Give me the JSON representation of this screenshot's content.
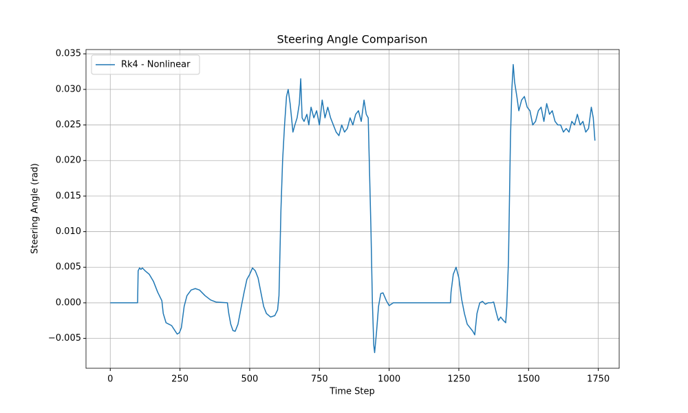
{
  "chart_data": {
    "type": "line",
    "title": "Steering Angle Comparison",
    "x_label": "Time Step",
    "y_label": "Steering Angle (rad)",
    "grid": true,
    "legend": "upper left",
    "xlim": [
      -87,
      1825
    ],
    "ylim": [
      -0.0092,
      0.0356
    ],
    "xticks": [
      0,
      250,
      500,
      750,
      1000,
      1250,
      1500,
      1750
    ],
    "yticks": [
      {
        "value": -0.005,
        "label": "−0.005"
      },
      {
        "value": 0,
        "label": "0.000"
      },
      {
        "value": 0.005,
        "label": "0.005"
      },
      {
        "value": 0.01,
        "label": "0.010"
      },
      {
        "value": 0.015,
        "label": "0.015"
      },
      {
        "value": 0.02,
        "label": "0.020"
      },
      {
        "value": 0.025,
        "label": "0.025"
      },
      {
        "value": 0.03,
        "label": "0.030"
      },
      {
        "value": 0.035,
        "label": "0.035"
      }
    ],
    "x": [
      0,
      98,
      100,
      105,
      110,
      115,
      125,
      140,
      155,
      170,
      185,
      190,
      200,
      210,
      220,
      230,
      240,
      248,
      255,
      265,
      275,
      290,
      305,
      320,
      340,
      360,
      380,
      420,
      425,
      432,
      440,
      448,
      458,
      470,
      480,
      490,
      500,
      510,
      520,
      530,
      540,
      550,
      560,
      575,
      590,
      600,
      605,
      612,
      618,
      625,
      632,
      638,
      645,
      650,
      655,
      662,
      670,
      678,
      683,
      688,
      695,
      705,
      712,
      720,
      730,
      740,
      750,
      760,
      770,
      780,
      790,
      800,
      810,
      820,
      830,
      840,
      850,
      860,
      870,
      880,
      890,
      900,
      910,
      918,
      925,
      930,
      935,
      940,
      945,
      948,
      955,
      962,
      970,
      978,
      990,
      1000,
      1015,
      1100,
      1220,
      1222,
      1230,
      1240,
      1250,
      1260,
      1270,
      1280,
      1290,
      1300,
      1307,
      1315,
      1325,
      1335,
      1345,
      1355,
      1365,
      1375,
      1385,
      1392,
      1400,
      1410,
      1418,
      1422,
      1428,
      1435,
      1440,
      1445,
      1450,
      1458,
      1465,
      1475,
      1485,
      1495,
      1505,
      1515,
      1525,
      1535,
      1545,
      1555,
      1565,
      1575,
      1585,
      1595,
      1605,
      1615,
      1625,
      1635,
      1645,
      1655,
      1665,
      1675,
      1685,
      1695,
      1705,
      1715,
      1725,
      1732,
      1738
    ],
    "series": [
      {
        "name": "Rk4 - Nonlinear",
        "color": "#1f77b4",
        "values": [
          0,
          0,
          0.0045,
          0.0049,
          0.0047,
          0.0049,
          0.0045,
          0.004,
          0.003,
          0.0015,
          0.0003,
          -0.0015,
          -0.0028,
          -0.003,
          -0.0032,
          -0.0038,
          -0.0044,
          -0.0042,
          -0.0035,
          -0.0005,
          0.001,
          0.0018,
          0.002,
          0.0018,
          0.001,
          0.0004,
          0.0001,
          0,
          -0.0015,
          -0.003,
          -0.0039,
          -0.004,
          -0.003,
          -0.0005,
          0.0015,
          0.0033,
          0.004,
          0.0049,
          0.0045,
          0.0035,
          0.0015,
          -0.0005,
          -0.0015,
          -0.002,
          -0.0018,
          -0.001,
          0.001,
          0.013,
          0.02,
          0.025,
          0.029,
          0.03,
          0.028,
          0.026,
          0.024,
          0.025,
          0.026,
          0.028,
          0.0315,
          0.026,
          0.0255,
          0.0265,
          0.025,
          0.0275,
          0.026,
          0.027,
          0.025,
          0.0285,
          0.026,
          0.0275,
          0.026,
          0.025,
          0.024,
          0.0235,
          0.025,
          0.024,
          0.0245,
          0.026,
          0.025,
          0.0265,
          0.027,
          0.0255,
          0.0285,
          0.0265,
          0.026,
          0.018,
          0.01,
          0,
          -0.006,
          -0.007,
          -0.004,
          -0.0005,
          0.0013,
          0.0014,
          0.0003,
          -0.0004,
          0,
          0,
          0,
          0.0015,
          0.004,
          0.005,
          0.0035,
          0.0005,
          -0.0015,
          -0.003,
          -0.0035,
          -0.004,
          -0.0045,
          -0.0015,
          0,
          0.0002,
          -0.0002,
          0,
          0,
          0.0001,
          -0.0015,
          -0.0025,
          -0.002,
          -0.0025,
          -0.0028,
          -0.0005,
          0.006,
          0.023,
          0.03,
          0.0335,
          0.031,
          0.029,
          0.027,
          0.0285,
          0.029,
          0.0275,
          0.027,
          0.025,
          0.0255,
          0.027,
          0.0275,
          0.0255,
          0.028,
          0.0265,
          0.027,
          0.0255,
          0.025,
          0.025,
          0.024,
          0.0245,
          0.024,
          0.0255,
          0.025,
          0.0265,
          0.025,
          0.0255,
          0.024,
          0.0245,
          0.0275,
          0.026,
          0.0228
        ]
      }
    ]
  }
}
